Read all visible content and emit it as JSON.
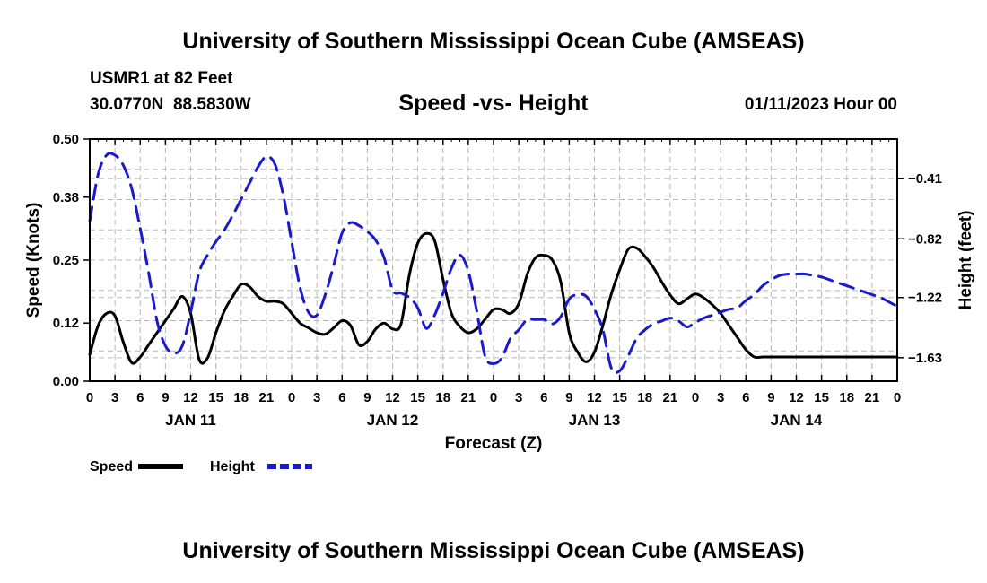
{
  "page_title": "University of Southern Mississippi Ocean Cube (AMSEAS)",
  "station": {
    "name_line": "USMR1 at 82 Feet",
    "coords": "30.0770N  88.5830W",
    "subtitle": "Speed -vs- Height",
    "date": "01/11/2023 Hour 00"
  },
  "footer_title": "University of Southern Mississippi Ocean Cube (AMSEAS)",
  "chart_data": {
    "type": "line",
    "title": "Speed -vs- Height",
    "xlabel": "Forecast (Z)",
    "ylabel": "Speed (Knots)",
    "y2label": "Height (feet)",
    "x_tick_labels": [
      "0",
      "3",
      "6",
      "9",
      "12",
      "15",
      "18",
      "21",
      "0",
      "3",
      "6",
      "9",
      "12",
      "15",
      "18",
      "21",
      "0",
      "3",
      "6",
      "9",
      "12",
      "15",
      "18",
      "21",
      "0",
      "3",
      "6",
      "9",
      "12",
      "15",
      "18",
      "21",
      "0"
    ],
    "day_labels": [
      {
        "label": "JAN 11",
        "hour": 12
      },
      {
        "label": "JAN 12",
        "hour": 36
      },
      {
        "label": "JAN 13",
        "hour": 60
      },
      {
        "label": "JAN 14",
        "hour": 84
      }
    ],
    "xlim": [
      0,
      96
    ],
    "ylim": [
      0,
      0.5
    ],
    "y_ticks": [
      0.0,
      0.12,
      0.25,
      0.38,
      0.5
    ],
    "y_tick_labels": [
      "0.00",
      "0.12",
      "0.25",
      "0.38",
      "0.50"
    ],
    "y2lim": [
      -1.79,
      -0.14
    ],
    "y2_ticks": [
      -1.63,
      -1.22,
      -0.82,
      -0.41
    ],
    "y2_tick_labels": [
      "-1.63",
      "-1.22",
      "-0.82",
      "-0.41"
    ],
    "series": [
      {
        "name": "Speed",
        "axis": "left",
        "color": "#000000",
        "style": "solid",
        "x": [
          0,
          1,
          2,
          3,
          4,
          5,
          6,
          7,
          8,
          9,
          10,
          11,
          12,
          13,
          14,
          15,
          16,
          17,
          18,
          19,
          20,
          21,
          22,
          23,
          24,
          25,
          26,
          27,
          28,
          29,
          30,
          31,
          32,
          33,
          34,
          35,
          36,
          37,
          38,
          39,
          40,
          41,
          42,
          43,
          44,
          45,
          46,
          47,
          48,
          49,
          50,
          51,
          52,
          53,
          54,
          55,
          56,
          57,
          58,
          59,
          60,
          61,
          62,
          63,
          64,
          65,
          66,
          67,
          68,
          69,
          70,
          71,
          72,
          73,
          74,
          75,
          76,
          77,
          78,
          79,
          80,
          81,
          82,
          83,
          84,
          85,
          86,
          87,
          88,
          89,
          90,
          91,
          92,
          93,
          94,
          95,
          96
        ],
        "values": [
          0.055,
          0.115,
          0.14,
          0.135,
          0.08,
          0.038,
          0.05,
          0.075,
          0.1,
          0.125,
          0.15,
          0.175,
          0.14,
          0.045,
          0.048,
          0.1,
          0.145,
          0.175,
          0.2,
          0.195,
          0.175,
          0.165,
          0.165,
          0.16,
          0.14,
          0.12,
          0.11,
          0.1,
          0.097,
          0.11,
          0.125,
          0.115,
          0.075,
          0.082,
          0.108,
          0.12,
          0.108,
          0.118,
          0.22,
          0.285,
          0.305,
          0.29,
          0.21,
          0.14,
          0.113,
          0.1,
          0.108,
          0.128,
          0.148,
          0.148,
          0.14,
          0.16,
          0.22,
          0.255,
          0.26,
          0.25,
          0.205,
          0.1,
          0.06,
          0.04,
          0.06,
          0.115,
          0.18,
          0.23,
          0.272,
          0.275,
          0.258,
          0.235,
          0.205,
          0.178,
          0.16,
          0.17,
          0.18,
          0.172,
          0.158,
          0.14,
          0.115,
          0.09,
          0.065,
          0.05,
          0.05,
          0.05,
          0.05,
          0.05,
          0.05,
          0.05,
          0.05,
          0.05,
          0.05,
          0.05,
          0.05,
          0.05,
          0.05,
          0.05,
          0.05,
          0.05,
          0.05
        ]
      },
      {
        "name": "Height",
        "axis": "right",
        "color": "#1a1acc",
        "style": "dashed",
        "x": [
          0,
          1,
          2,
          3,
          4,
          5,
          6,
          7,
          8,
          9,
          10,
          11,
          12,
          13,
          14,
          15,
          16,
          17,
          18,
          19,
          20,
          21,
          22,
          23,
          24,
          25,
          26,
          27,
          28,
          29,
          30,
          31,
          32,
          33,
          34,
          35,
          36,
          37,
          38,
          39,
          40,
          41,
          42,
          43,
          44,
          45,
          46,
          47,
          48,
          49,
          50,
          51,
          52,
          53,
          54,
          55,
          56,
          57,
          58,
          59,
          60,
          61,
          62,
          63,
          64,
          65,
          66,
          67,
          68,
          69,
          70,
          71,
          72,
          73,
          74,
          75,
          76,
          77,
          78,
          79,
          80,
          81,
          82,
          83,
          84,
          85,
          86,
          87,
          88,
          89,
          90,
          91,
          92,
          93,
          94,
          95,
          96
        ],
        "values": [
          -0.7,
          -0.38,
          -0.25,
          -0.25,
          -0.32,
          -0.48,
          -0.75,
          -1.05,
          -1.38,
          -1.55,
          -1.6,
          -1.55,
          -1.32,
          -1.05,
          -0.93,
          -0.84,
          -0.76,
          -0.66,
          -0.55,
          -0.44,
          -0.33,
          -0.26,
          -0.31,
          -0.52,
          -0.84,
          -1.15,
          -1.32,
          -1.34,
          -1.2,
          -1.0,
          -0.78,
          -0.71,
          -0.73,
          -0.77,
          -0.83,
          -0.95,
          -1.17,
          -1.19,
          -1.22,
          -1.29,
          -1.43,
          -1.34,
          -1.19,
          -1.02,
          -0.93,
          -1.04,
          -1.31,
          -1.62,
          -1.67,
          -1.63,
          -1.5,
          -1.44,
          -1.37,
          -1.37,
          -1.37,
          -1.4,
          -1.35,
          -1.23,
          -1.2,
          -1.21,
          -1.3,
          -1.44,
          -1.7,
          -1.72,
          -1.62,
          -1.5,
          -1.44,
          -1.4,
          -1.38,
          -1.36,
          -1.38,
          -1.42,
          -1.39,
          -1.36,
          -1.34,
          -1.32,
          -1.3,
          -1.29,
          -1.24,
          -1.2,
          -1.14,
          -1.1,
          -1.07,
          -1.06,
          -1.06,
          -1.06,
          -1.07,
          -1.08,
          -1.1,
          -1.12,
          -1.14,
          -1.16,
          -1.18,
          -1.2,
          -1.22,
          -1.25,
          -1.28
        ]
      }
    ],
    "legend": [
      {
        "label": "Speed",
        "color": "#000000",
        "style": "solid"
      },
      {
        "label": "Height",
        "color": "#1a1acc",
        "style": "dashed"
      }
    ],
    "legend_position": "bottom-left",
    "grid": true
  }
}
